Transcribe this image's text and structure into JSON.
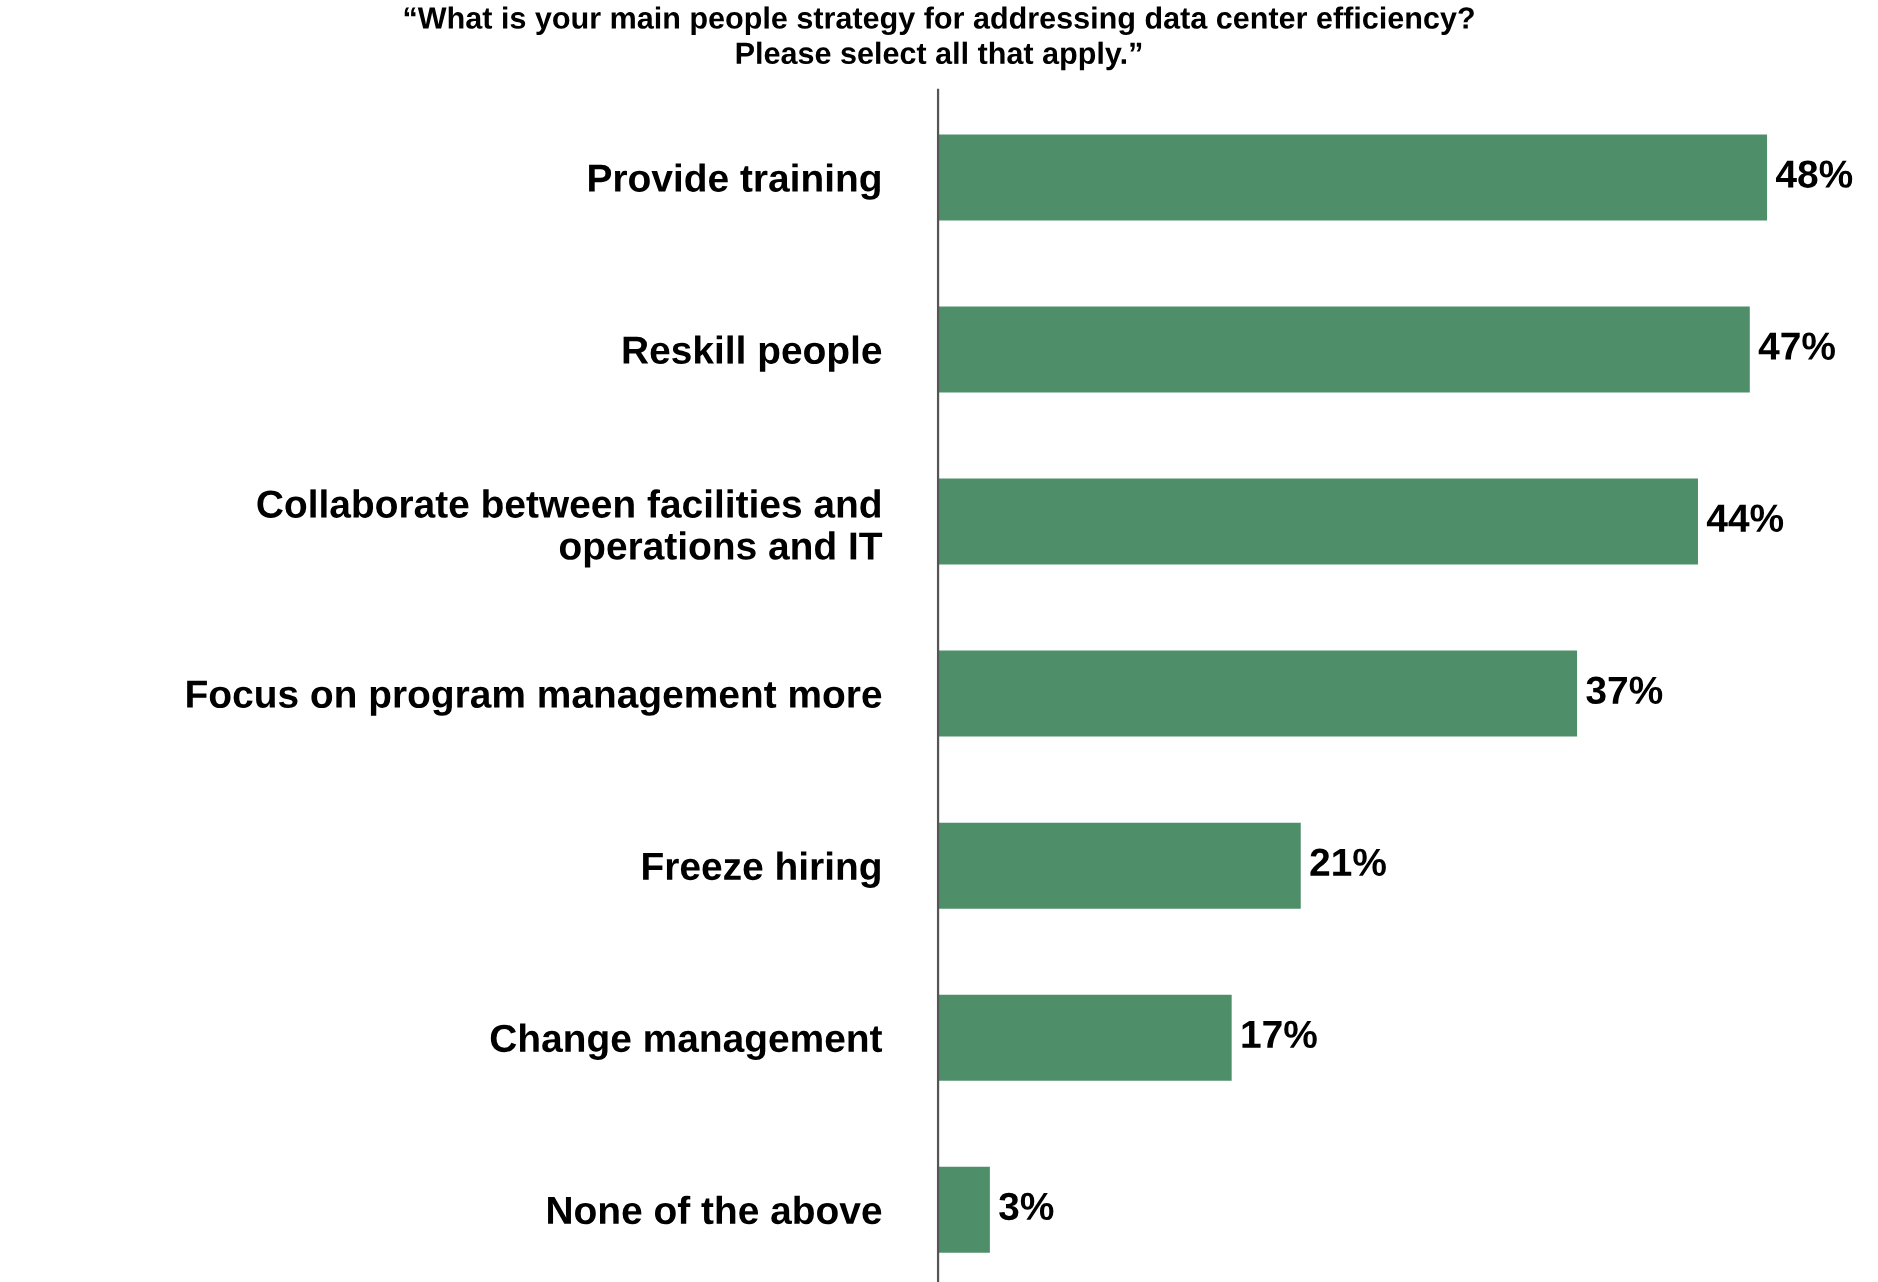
{
  "chart_data": {
    "type": "bar",
    "orientation": "horizontal",
    "title": "“What is your main people strategy for addressing data center efficiency?\nPlease select all that apply.”",
    "categories": [
      "Provide training",
      "Reskill people",
      "Collaborate between facilities and\noperations and IT",
      "Focus on program management more",
      "Freeze hiring",
      "Change management",
      "None of the above"
    ],
    "values": [
      48,
      47,
      44,
      37,
      21,
      17,
      3
    ],
    "value_labels": [
      "48%",
      "47%",
      "44%",
      "37%",
      "21%",
      "17%",
      "3%"
    ],
    "color": "#4e8f69",
    "tick_labels": "y",
    "grid": false,
    "legend": false
  }
}
